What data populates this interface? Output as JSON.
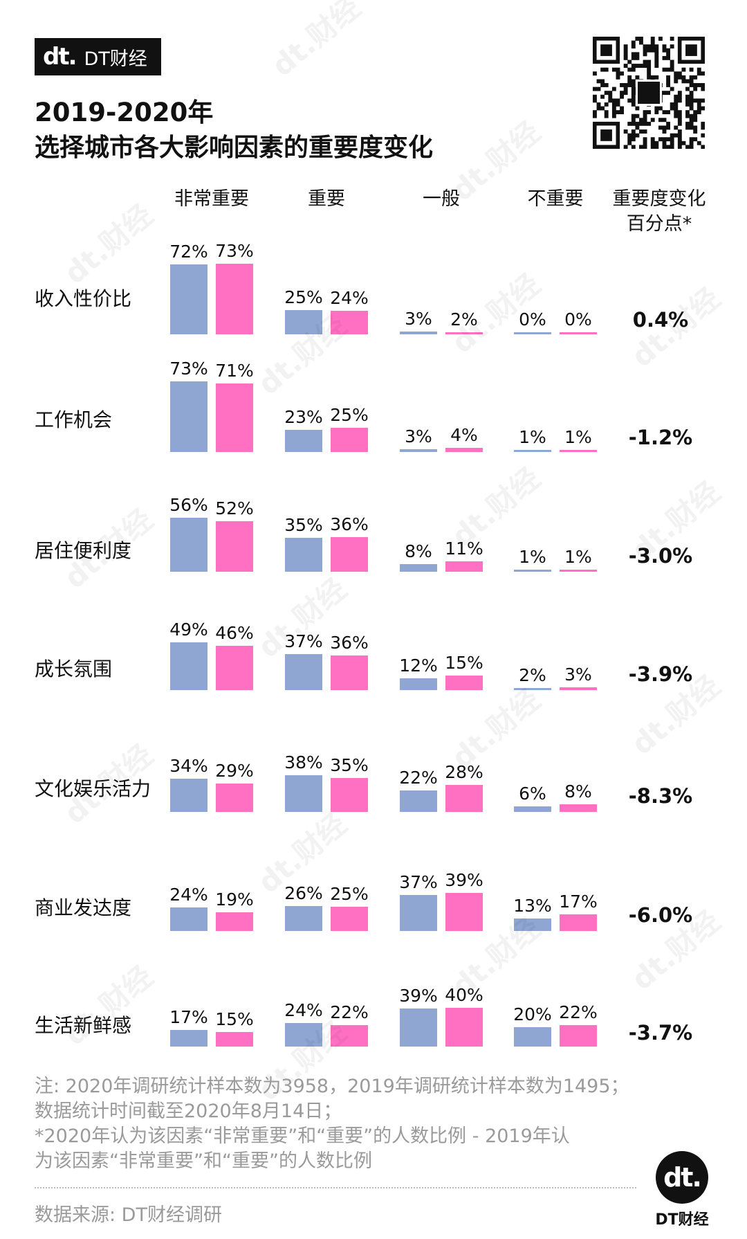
{
  "brand": {
    "logo": "dt.",
    "name": "DT财经"
  },
  "title": {
    "line1": "2019-2020年",
    "line2": "选择城市各大影响因素的重要度变化"
  },
  "watermark": "dt.财经",
  "colors": {
    "y2019": "#8fa6d3",
    "y2020": "#ff70c2"
  },
  "chart_data": {
    "type": "bar",
    "title": "2019-2020年 选择城市各大影响因素的重要度变化",
    "columns": [
      "非常重要",
      "重要",
      "一般",
      "不重要"
    ],
    "change_header": [
      "重要度变化",
      "百分点*"
    ],
    "series": [
      {
        "color": "#8fa6d3"
      },
      {
        "color": "#ff70c2"
      }
    ],
    "factors": [
      {
        "name": "收入性价比",
        "values": [
          [
            72,
            73
          ],
          [
            25,
            24
          ],
          [
            3,
            2
          ],
          [
            0,
            0
          ]
        ],
        "change": "0.4%"
      },
      {
        "name": "工作机会",
        "values": [
          [
            73,
            71
          ],
          [
            23,
            25
          ],
          [
            3,
            4
          ],
          [
            1,
            1
          ]
        ],
        "change": "-1.2%"
      },
      {
        "name": "居住便利度",
        "values": [
          [
            56,
            52
          ],
          [
            35,
            36
          ],
          [
            8,
            11
          ],
          [
            1,
            1
          ]
        ],
        "change": "-3.0%"
      },
      {
        "name": "成长氛围",
        "values": [
          [
            49,
            46
          ],
          [
            37,
            36
          ],
          [
            12,
            15
          ],
          [
            2,
            3
          ]
        ],
        "change": "-3.9%"
      },
      {
        "name": "文化娱乐活力",
        "values": [
          [
            34,
            29
          ],
          [
            38,
            35
          ],
          [
            22,
            28
          ],
          [
            6,
            8
          ]
        ],
        "change": "-8.3%"
      },
      {
        "name": "商业发达度",
        "values": [
          [
            24,
            19
          ],
          [
            26,
            25
          ],
          [
            37,
            39
          ],
          [
            13,
            17
          ]
        ],
        "change": "-6.0%"
      },
      {
        "name": "生活新鲜感",
        "values": [
          [
            17,
            15
          ],
          [
            24,
            22
          ],
          [
            39,
            40
          ],
          [
            20,
            22
          ]
        ],
        "change": "-3.7%"
      }
    ]
  },
  "notes": [
    "注: 2020年调研统计样本数为3958，2019年调研统计样本数为1495；",
    "数据统计时间截至2020年8月14日；",
    "*2020年认为该因素“非常重要”和“重要”的人数比例 - 2019年认",
    "为该因素“非常重要”和“重要”的人数比例"
  ],
  "source": "数据来源: DT财经调研",
  "footer": {
    "logo": "dt.",
    "name": "DT财经"
  }
}
